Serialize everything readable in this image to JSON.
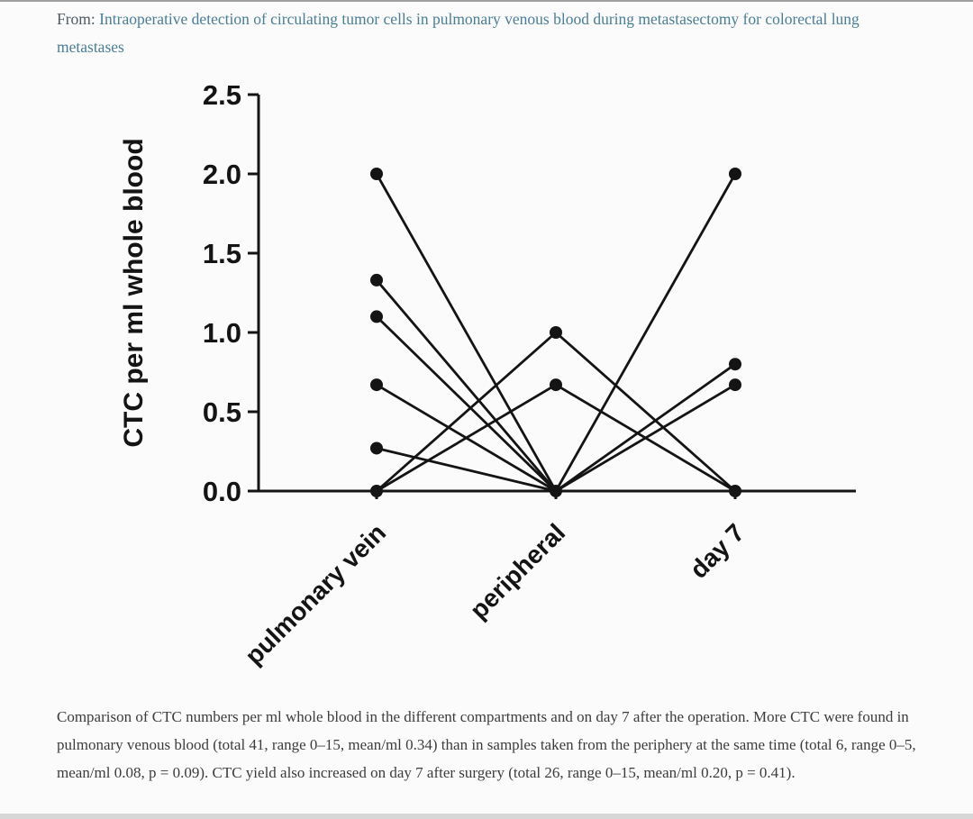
{
  "header": {
    "from_label": "From: ",
    "article_title": "Intraoperative detection of circulating tumor cells in pulmonary venous blood during metastasectomy for colorectal lung metastases",
    "link_color": "#4a7e96"
  },
  "chart_data": {
    "type": "line",
    "title": "",
    "xlabel": "",
    "ylabel": "CTC per ml whole blood",
    "categories": [
      "pulmonary vein",
      "peripheral",
      "day 7"
    ],
    "ylim": [
      0,
      2.5
    ],
    "yticks": [
      0,
      0.5,
      1,
      1.5,
      2,
      2.5
    ],
    "grid": false,
    "legend": "none",
    "marker_color": "#141414",
    "points_by_category": {
      "pulmonary vein": [
        2.0,
        1.33,
        1.1,
        0.67,
        0.27,
        0.0
      ],
      "peripheral": [
        1.0,
        0.67,
        0.0
      ],
      "day 7": [
        2.0,
        0.8,
        0.67,
        0.0
      ]
    },
    "segments": [
      [
        [
          0,
          2.0
        ],
        [
          1,
          0.0
        ]
      ],
      [
        [
          0,
          1.33
        ],
        [
          1,
          0.0
        ]
      ],
      [
        [
          0,
          1.1
        ],
        [
          1,
          0.0
        ]
      ],
      [
        [
          0,
          0.67
        ],
        [
          1,
          0.0
        ]
      ],
      [
        [
          0,
          0.27
        ],
        [
          1,
          0.0
        ]
      ],
      [
        [
          0,
          0.0
        ],
        [
          1,
          1.0
        ]
      ],
      [
        [
          0,
          0.0
        ],
        [
          1,
          0.67
        ]
      ],
      [
        [
          1,
          1.0
        ],
        [
          2,
          0.0
        ]
      ],
      [
        [
          1,
          0.67
        ],
        [
          2,
          0.0
        ]
      ],
      [
        [
          1,
          0.0
        ],
        [
          2,
          2.0
        ]
      ],
      [
        [
          1,
          0.0
        ],
        [
          2,
          0.8
        ]
      ],
      [
        [
          1,
          0.0
        ],
        [
          2,
          0.67
        ]
      ]
    ]
  },
  "caption": {
    "text": "Comparison of CTC numbers per ml whole blood in the different compartments and on day 7 after the operation. More CTC were found in pulmonary venous blood (total 41, range 0–15, mean/ml 0.34) than in samples taken from the periphery at the same time (total 6, range 0–5, mean/ml 0.08, p = 0.09). CTC yield also increased on day 7 after surgery (total 26, range 0–15, mean/ml 0.20, p = 0.41)."
  }
}
